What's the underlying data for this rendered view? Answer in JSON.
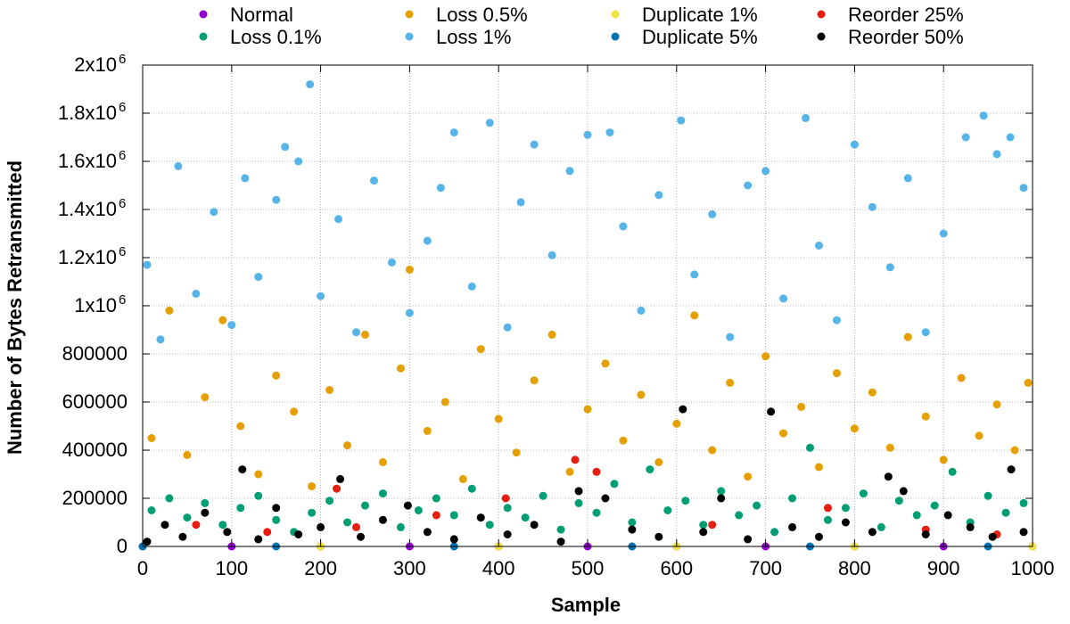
{
  "chart_data": {
    "type": "scatter",
    "title": "",
    "xlabel": "Sample",
    "ylabel": "Number of Bytes Retransmitted",
    "xlim": [
      0,
      1000
    ],
    "ylim": [
      0,
      2000000
    ],
    "grid": true,
    "legend_position": "top",
    "x_ticks": [
      {
        "value": 0,
        "label": "0"
      },
      {
        "value": 100,
        "label": "100"
      },
      {
        "value": 200,
        "label": "200"
      },
      {
        "value": 300,
        "label": "300"
      },
      {
        "value": 400,
        "label": "400"
      },
      {
        "value": 500,
        "label": "500"
      },
      {
        "value": 600,
        "label": "600"
      },
      {
        "value": 700,
        "label": "700"
      },
      {
        "value": 800,
        "label": "800"
      },
      {
        "value": 900,
        "label": "900"
      },
      {
        "value": 1000,
        "label": "1000"
      }
    ],
    "y_ticks": [
      {
        "value": 0,
        "label": "0"
      },
      {
        "value": 200000,
        "label": "200000"
      },
      {
        "value": 400000,
        "label": "400000"
      },
      {
        "value": 600000,
        "label": "600000"
      },
      {
        "value": 800000,
        "label": "800000"
      },
      {
        "value": 1000000,
        "label": "1x10",
        "exp": "6"
      },
      {
        "value": 1200000,
        "label": "1.2x10",
        "exp": "6"
      },
      {
        "value": 1400000,
        "label": "1.4x10",
        "exp": "6"
      },
      {
        "value": 1600000,
        "label": "1.6x10",
        "exp": "6"
      },
      {
        "value": 1800000,
        "label": "1.8x10",
        "exp": "6"
      },
      {
        "value": 2000000,
        "label": "2x10",
        "exp": "6"
      }
    ],
    "series": [
      {
        "name": "Normal",
        "color": "#9400d3",
        "values": [
          {
            "x": 0,
            "y": 0
          },
          {
            "x": 100,
            "y": 0
          },
          {
            "x": 200,
            "y": 0
          },
          {
            "x": 300,
            "y": 0
          },
          {
            "x": 400,
            "y": 0
          },
          {
            "x": 500,
            "y": 0
          },
          {
            "x": 600,
            "y": 0
          },
          {
            "x": 700,
            "y": 0
          },
          {
            "x": 800,
            "y": 0
          },
          {
            "x": 900,
            "y": 0
          },
          {
            "x": 1000,
            "y": 0
          }
        ]
      },
      {
        "name": "Loss 0.1%",
        "color": "#009e73",
        "values": [
          {
            "x": 10,
            "y": 150000
          },
          {
            "x": 30,
            "y": 200000
          },
          {
            "x": 50,
            "y": 120000
          },
          {
            "x": 70,
            "y": 180000
          },
          {
            "x": 90,
            "y": 90000
          },
          {
            "x": 110,
            "y": 160000
          },
          {
            "x": 130,
            "y": 210000
          },
          {
            "x": 150,
            "y": 110000
          },
          {
            "x": 170,
            "y": 60000
          },
          {
            "x": 190,
            "y": 140000
          },
          {
            "x": 210,
            "y": 190000
          },
          {
            "x": 230,
            "y": 100000
          },
          {
            "x": 250,
            "y": 170000
          },
          {
            "x": 270,
            "y": 220000
          },
          {
            "x": 290,
            "y": 80000
          },
          {
            "x": 310,
            "y": 150000
          },
          {
            "x": 330,
            "y": 200000
          },
          {
            "x": 350,
            "y": 130000
          },
          {
            "x": 370,
            "y": 240000
          },
          {
            "x": 390,
            "y": 90000
          },
          {
            "x": 410,
            "y": 160000
          },
          {
            "x": 430,
            "y": 120000
          },
          {
            "x": 450,
            "y": 210000
          },
          {
            "x": 470,
            "y": 70000
          },
          {
            "x": 490,
            "y": 180000
          },
          {
            "x": 510,
            "y": 140000
          },
          {
            "x": 530,
            "y": 260000
          },
          {
            "x": 550,
            "y": 100000
          },
          {
            "x": 570,
            "y": 320000
          },
          {
            "x": 590,
            "y": 150000
          },
          {
            "x": 610,
            "y": 190000
          },
          {
            "x": 630,
            "y": 90000
          },
          {
            "x": 650,
            "y": 230000
          },
          {
            "x": 670,
            "y": 130000
          },
          {
            "x": 690,
            "y": 170000
          },
          {
            "x": 710,
            "y": 60000
          },
          {
            "x": 730,
            "y": 200000
          },
          {
            "x": 750,
            "y": 410000
          },
          {
            "x": 770,
            "y": 110000
          },
          {
            "x": 790,
            "y": 160000
          },
          {
            "x": 810,
            "y": 220000
          },
          {
            "x": 830,
            "y": 80000
          },
          {
            "x": 850,
            "y": 190000
          },
          {
            "x": 870,
            "y": 130000
          },
          {
            "x": 890,
            "y": 170000
          },
          {
            "x": 910,
            "y": 310000
          },
          {
            "x": 930,
            "y": 100000
          },
          {
            "x": 950,
            "y": 210000
          },
          {
            "x": 970,
            "y": 140000
          },
          {
            "x": 990,
            "y": 180000
          }
        ]
      },
      {
        "name": "Loss 0.5%",
        "color": "#e69f00",
        "values": [
          {
            "x": 10,
            "y": 450000
          },
          {
            "x": 30,
            "y": 980000
          },
          {
            "x": 50,
            "y": 380000
          },
          {
            "x": 70,
            "y": 620000
          },
          {
            "x": 90,
            "y": 940000
          },
          {
            "x": 110,
            "y": 500000
          },
          {
            "x": 130,
            "y": 300000
          },
          {
            "x": 150,
            "y": 710000
          },
          {
            "x": 170,
            "y": 560000
          },
          {
            "x": 190,
            "y": 250000
          },
          {
            "x": 210,
            "y": 650000
          },
          {
            "x": 230,
            "y": 420000
          },
          {
            "x": 250,
            "y": 880000
          },
          {
            "x": 270,
            "y": 350000
          },
          {
            "x": 290,
            "y": 740000
          },
          {
            "x": 300,
            "y": 1150000
          },
          {
            "x": 320,
            "y": 480000
          },
          {
            "x": 340,
            "y": 600000
          },
          {
            "x": 360,
            "y": 280000
          },
          {
            "x": 380,
            "y": 820000
          },
          {
            "x": 400,
            "y": 530000
          },
          {
            "x": 420,
            "y": 390000
          },
          {
            "x": 440,
            "y": 690000
          },
          {
            "x": 460,
            "y": 880000
          },
          {
            "x": 480,
            "y": 310000
          },
          {
            "x": 500,
            "y": 570000
          },
          {
            "x": 520,
            "y": 760000
          },
          {
            "x": 540,
            "y": 440000
          },
          {
            "x": 560,
            "y": 630000
          },
          {
            "x": 580,
            "y": 350000
          },
          {
            "x": 600,
            "y": 510000
          },
          {
            "x": 620,
            "y": 960000
          },
          {
            "x": 640,
            "y": 400000
          },
          {
            "x": 660,
            "y": 680000
          },
          {
            "x": 680,
            "y": 290000
          },
          {
            "x": 700,
            "y": 790000
          },
          {
            "x": 720,
            "y": 470000
          },
          {
            "x": 740,
            "y": 580000
          },
          {
            "x": 760,
            "y": 330000
          },
          {
            "x": 780,
            "y": 720000
          },
          {
            "x": 800,
            "y": 490000
          },
          {
            "x": 820,
            "y": 640000
          },
          {
            "x": 840,
            "y": 410000
          },
          {
            "x": 860,
            "y": 870000
          },
          {
            "x": 880,
            "y": 540000
          },
          {
            "x": 900,
            "y": 360000
          },
          {
            "x": 920,
            "y": 700000
          },
          {
            "x": 940,
            "y": 460000
          },
          {
            "x": 960,
            "y": 590000
          },
          {
            "x": 980,
            "y": 400000
          },
          {
            "x": 995,
            "y": 680000
          }
        ]
      },
      {
        "name": "Loss 1%",
        "color": "#56b4e9",
        "values": [
          {
            "x": 5,
            "y": 1170000
          },
          {
            "x": 20,
            "y": 860000
          },
          {
            "x": 40,
            "y": 1580000
          },
          {
            "x": 60,
            "y": 1050000
          },
          {
            "x": 80,
            "y": 1390000
          },
          {
            "x": 100,
            "y": 920000
          },
          {
            "x": 115,
            "y": 1530000
          },
          {
            "x": 130,
            "y": 1120000
          },
          {
            "x": 150,
            "y": 1440000
          },
          {
            "x": 160,
            "y": 1660000
          },
          {
            "x": 175,
            "y": 1600000
          },
          {
            "x": 188,
            "y": 1920000
          },
          {
            "x": 200,
            "y": 1040000
          },
          {
            "x": 220,
            "y": 1360000
          },
          {
            "x": 240,
            "y": 890000
          },
          {
            "x": 260,
            "y": 1520000
          },
          {
            "x": 280,
            "y": 1180000
          },
          {
            "x": 300,
            "y": 970000
          },
          {
            "x": 320,
            "y": 1270000
          },
          {
            "x": 335,
            "y": 1490000
          },
          {
            "x": 350,
            "y": 1720000
          },
          {
            "x": 370,
            "y": 1080000
          },
          {
            "x": 390,
            "y": 1760000
          },
          {
            "x": 410,
            "y": 910000
          },
          {
            "x": 425,
            "y": 1430000
          },
          {
            "x": 440,
            "y": 1670000
          },
          {
            "x": 460,
            "y": 1210000
          },
          {
            "x": 480,
            "y": 1560000
          },
          {
            "x": 500,
            "y": 1710000
          },
          {
            "x": 525,
            "y": 1720000
          },
          {
            "x": 540,
            "y": 1330000
          },
          {
            "x": 560,
            "y": 980000
          },
          {
            "x": 580,
            "y": 1460000
          },
          {
            "x": 605,
            "y": 1770000
          },
          {
            "x": 620,
            "y": 1130000
          },
          {
            "x": 640,
            "y": 1380000
          },
          {
            "x": 660,
            "y": 870000
          },
          {
            "x": 680,
            "y": 1500000
          },
          {
            "x": 700,
            "y": 1560000
          },
          {
            "x": 720,
            "y": 1030000
          },
          {
            "x": 745,
            "y": 1780000
          },
          {
            "x": 760,
            "y": 1250000
          },
          {
            "x": 780,
            "y": 940000
          },
          {
            "x": 800,
            "y": 1670000
          },
          {
            "x": 820,
            "y": 1410000
          },
          {
            "x": 840,
            "y": 1160000
          },
          {
            "x": 860,
            "y": 1530000
          },
          {
            "x": 880,
            "y": 890000
          },
          {
            "x": 900,
            "y": 1300000
          },
          {
            "x": 925,
            "y": 1700000
          },
          {
            "x": 945,
            "y": 1790000
          },
          {
            "x": 960,
            "y": 1630000
          },
          {
            "x": 975,
            "y": 1700000
          },
          {
            "x": 990,
            "y": 1490000
          }
        ]
      },
      {
        "name": "Duplicate 1%",
        "color": "#f0e442",
        "values": [
          {
            "x": 0,
            "y": 0
          },
          {
            "x": 200,
            "y": 0
          },
          {
            "x": 400,
            "y": 0
          },
          {
            "x": 600,
            "y": 0
          },
          {
            "x": 800,
            "y": 0
          },
          {
            "x": 1000,
            "y": 0
          }
        ]
      },
      {
        "name": "Duplicate 5%",
        "color": "#0072b2",
        "values": [
          {
            "x": 0,
            "y": 0
          },
          {
            "x": 150,
            "y": 0
          },
          {
            "x": 350,
            "y": 0
          },
          {
            "x": 550,
            "y": 0
          },
          {
            "x": 750,
            "y": 0
          },
          {
            "x": 950,
            "y": 0
          }
        ]
      },
      {
        "name": "Reorder 25%",
        "color": "#e51e10",
        "values": [
          {
            "x": 60,
            "y": 90000
          },
          {
            "x": 140,
            "y": 60000
          },
          {
            "x": 218,
            "y": 240000
          },
          {
            "x": 240,
            "y": 80000
          },
          {
            "x": 330,
            "y": 130000
          },
          {
            "x": 408,
            "y": 200000
          },
          {
            "x": 486,
            "y": 360000
          },
          {
            "x": 510,
            "y": 310000
          },
          {
            "x": 640,
            "y": 90000
          },
          {
            "x": 770,
            "y": 160000
          },
          {
            "x": 880,
            "y": 70000
          },
          {
            "x": 960,
            "y": 50000
          }
        ]
      },
      {
        "name": "Reorder 50%",
        "color": "#000000",
        "values": [
          {
            "x": 5,
            "y": 20000
          },
          {
            "x": 25,
            "y": 90000
          },
          {
            "x": 45,
            "y": 40000
          },
          {
            "x": 70,
            "y": 140000
          },
          {
            "x": 95,
            "y": 60000
          },
          {
            "x": 112,
            "y": 320000
          },
          {
            "x": 130,
            "y": 30000
          },
          {
            "x": 150,
            "y": 160000
          },
          {
            "x": 175,
            "y": 50000
          },
          {
            "x": 200,
            "y": 80000
          },
          {
            "x": 222,
            "y": 280000
          },
          {
            "x": 245,
            "y": 40000
          },
          {
            "x": 270,
            "y": 110000
          },
          {
            "x": 298,
            "y": 170000
          },
          {
            "x": 320,
            "y": 60000
          },
          {
            "x": 350,
            "y": 30000
          },
          {
            "x": 380,
            "y": 120000
          },
          {
            "x": 410,
            "y": 50000
          },
          {
            "x": 440,
            "y": 90000
          },
          {
            "x": 470,
            "y": 20000
          },
          {
            "x": 490,
            "y": 230000
          },
          {
            "x": 520,
            "y": 200000
          },
          {
            "x": 550,
            "y": 70000
          },
          {
            "x": 580,
            "y": 40000
          },
          {
            "x": 607,
            "y": 570000
          },
          {
            "x": 630,
            "y": 60000
          },
          {
            "x": 650,
            "y": 200000
          },
          {
            "x": 680,
            "y": 30000
          },
          {
            "x": 706,
            "y": 560000
          },
          {
            "x": 730,
            "y": 80000
          },
          {
            "x": 760,
            "y": 40000
          },
          {
            "x": 790,
            "y": 100000
          },
          {
            "x": 820,
            "y": 60000
          },
          {
            "x": 838,
            "y": 290000
          },
          {
            "x": 855,
            "y": 230000
          },
          {
            "x": 880,
            "y": 50000
          },
          {
            "x": 905,
            "y": 130000
          },
          {
            "x": 930,
            "y": 80000
          },
          {
            "x": 955,
            "y": 40000
          },
          {
            "x": 976,
            "y": 320000
          },
          {
            "x": 990,
            "y": 60000
          }
        ]
      }
    ]
  }
}
